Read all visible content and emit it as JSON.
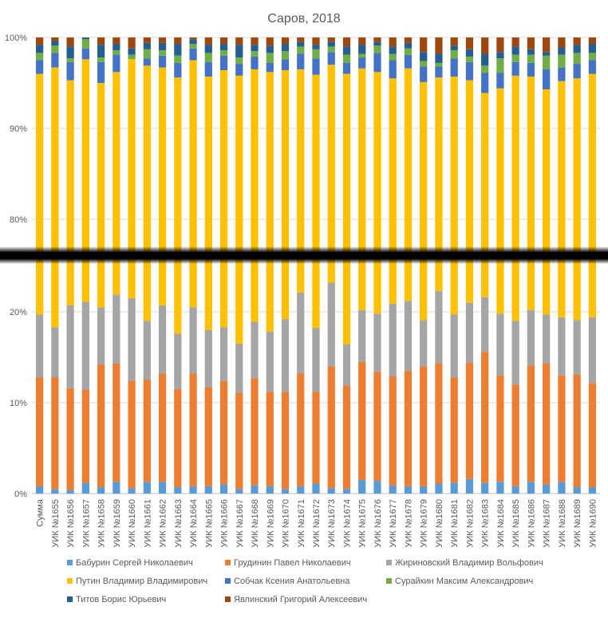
{
  "chart_data": {
    "type": "bar",
    "stacked": "percent",
    "broken_axis": true,
    "title": "Саров, 2018",
    "upper_panel": {
      "range": [
        75,
        100
      ],
      "ticks": [
        "80%",
        "90%",
        "100%"
      ]
    },
    "lower_panel": {
      "range": [
        0,
        25
      ],
      "ticks": [
        "0%",
        "10%",
        "20%"
      ]
    },
    "legend_position": "bottom",
    "categories": [
      "Сумма",
      "УИК №1655",
      "УИК №1656",
      "УИК №1657",
      "УИК №1658",
      "УИК №1659",
      "УИК №1660",
      "УИК №1661",
      "УИК №1662",
      "УИК №1663",
      "УИК №1664",
      "УИК №1665",
      "УИК №1666",
      "УИК №1667",
      "УИК №1668",
      "УИК №1669",
      "УИК №1670",
      "УИК №1671",
      "УИК №1672",
      "УИК №1673",
      "УИК №1674",
      "УИК №1675",
      "УИК №1676",
      "УИК №1677",
      "УИК №1678",
      "УИК №1679",
      "УИК №1680",
      "УИК №1681",
      "УИК №1682",
      "УИК №1683",
      "УИК №1684",
      "УИК №1685",
      "УИК №1686",
      "УИК №1687",
      "УИК №1688",
      "УИК №1689",
      "УИК №1690"
    ],
    "series": [
      {
        "name": "Бабурин Сергей Николаевич",
        "color": "#5b9bd5",
        "values": [
          0.8,
          0.5,
          0.4,
          1.2,
          0.7,
          1.3,
          0.6,
          1.3,
          1.3,
          0.7,
          0.8,
          0.8,
          1.0,
          0.5,
          0.9,
          0.8,
          0.5,
          0.8,
          1.1,
          0.6,
          0.5,
          1.5,
          1.4,
          0.9,
          0.8,
          0.8,
          1.1,
          1.2,
          1.6,
          1.2,
          1.3,
          0.8,
          1.3,
          1.0,
          1.3,
          0.7,
          0.7
        ]
      },
      {
        "name": "Грудинин Павел Николаевич",
        "color": "#ed7d31",
        "values": [
          12.0,
          12.3,
          11.2,
          10.2,
          13.5,
          13.0,
          11.8,
          11.2,
          11.9,
          10.8,
          12.4,
          10.9,
          11.4,
          10.6,
          11.8,
          10.4,
          10.7,
          12.4,
          10.1,
          13.4,
          11.4,
          13.0,
          12.0,
          12.0,
          12.7,
          13.2,
          13.2,
          11.6,
          12.8,
          14.4,
          11.7,
          11.2,
          12.8,
          13.3,
          11.7,
          12.4,
          11.4
        ]
      },
      {
        "name": "Жириновский Владимир Вольфович",
        "color": "#a5a5a5",
        "values": [
          6.9,
          5.5,
          9.1,
          9.7,
          6.3,
          7.6,
          9.1,
          6.5,
          7.5,
          6.1,
          7.3,
          6.3,
          5.9,
          5.4,
          6.2,
          6.6,
          8.0,
          8.9,
          7.0,
          9.2,
          4.5,
          5.7,
          6.4,
          8.0,
          7.7,
          5.1,
          8.0,
          6.9,
          6.6,
          6.0,
          6.8,
          7.0,
          6.1,
          5.4,
          6.4,
          6.0,
          7.3
        ]
      },
      {
        "name": "Путин Владимир Владимирович",
        "color": "#ffc000",
        "values": [
          76.3,
          78.4,
          74.6,
          76.5,
          74.5,
          74.3,
          76.1,
          77.9,
          76.0,
          78.0,
          77.0,
          77.7,
          78.1,
          79.3,
          77.6,
          78.4,
          77.2,
          74.4,
          77.7,
          73.8,
          79.6,
          76.4,
          76.4,
          74.6,
          75.4,
          76.0,
          73.3,
          76.0,
          74.3,
          72.3,
          74.6,
          76.8,
          75.5,
          74.6,
          75.8,
          76.4,
          76.6
        ]
      },
      {
        "name": "Собчак Ксения Анатольевна",
        "color": "#4472c4",
        "values": [
          1.5,
          1.6,
          2.0,
          1.2,
          2.3,
          1.9,
          0.0,
          0.8,
          1.3,
          1.6,
          1.3,
          1.6,
          1.6,
          1.3,
          1.4,
          1.0,
          1.2,
          1.7,
          1.8,
          1.4,
          1.2,
          1.2,
          2.1,
          2.0,
          1.5,
          1.7,
          1.2,
          2.0,
          2.0,
          2.2,
          1.7,
          1.5,
          1.5,
          2.2,
          1.5,
          1.6,
          1.5
        ]
      },
      {
        "name": "Сурайкин Максим Александрович",
        "color": "#70ad47",
        "values": [
          0.8,
          0.8,
          0.4,
          1.0,
          0.5,
          0.5,
          0.5,
          1.0,
          0.6,
          0.8,
          0.5,
          1.0,
          0.6,
          0.7,
          0.6,
          1.1,
          0.9,
          0.8,
          1.0,
          0.6,
          0.9,
          0.4,
          0.8,
          0.7,
          0.7,
          0.6,
          0.4,
          0.9,
          0.6,
          0.8,
          1.6,
          0.8,
          0.9,
          1.5,
          1.4,
          1.2,
          0.8
        ]
      },
      {
        "name": "Титов Борис Юрьевич",
        "color": "#255e91",
        "values": [
          0.9,
          0.5,
          1.3,
          0.5,
          1.4,
          0.7,
          0.7,
          0.7,
          0.8,
          1.3,
          0.5,
          0.9,
          0.7,
          1.4,
          0.7,
          0.8,
          0.8,
          0.5,
          0.5,
          0.5,
          0.9,
          1.0,
          0.4,
          0.8,
          0.6,
          1.0,
          1.0,
          0.5,
          0.8,
          1.3,
          0.7,
          0.9,
          0.6,
          0.4,
          0.8,
          0.9,
          1.0
        ]
      },
      {
        "name": "Явлинский Григорий Алексеевич",
        "color": "#9e480e",
        "values": [
          0.8,
          0.4,
          1.0,
          0.7,
          0.8,
          0.7,
          1.2,
          0.6,
          0.6,
          0.7,
          0.2,
          0.8,
          0.7,
          0.8,
          0.8,
          0.9,
          0.7,
          0.5,
          0.8,
          0.5,
          1.0,
          0.8,
          0.5,
          1.0,
          0.6,
          1.6,
          1.8,
          0.9,
          1.3,
          1.8,
          1.6,
          1.0,
          1.3,
          1.6,
          1.1,
          0.8,
          0.7
        ]
      }
    ]
  }
}
